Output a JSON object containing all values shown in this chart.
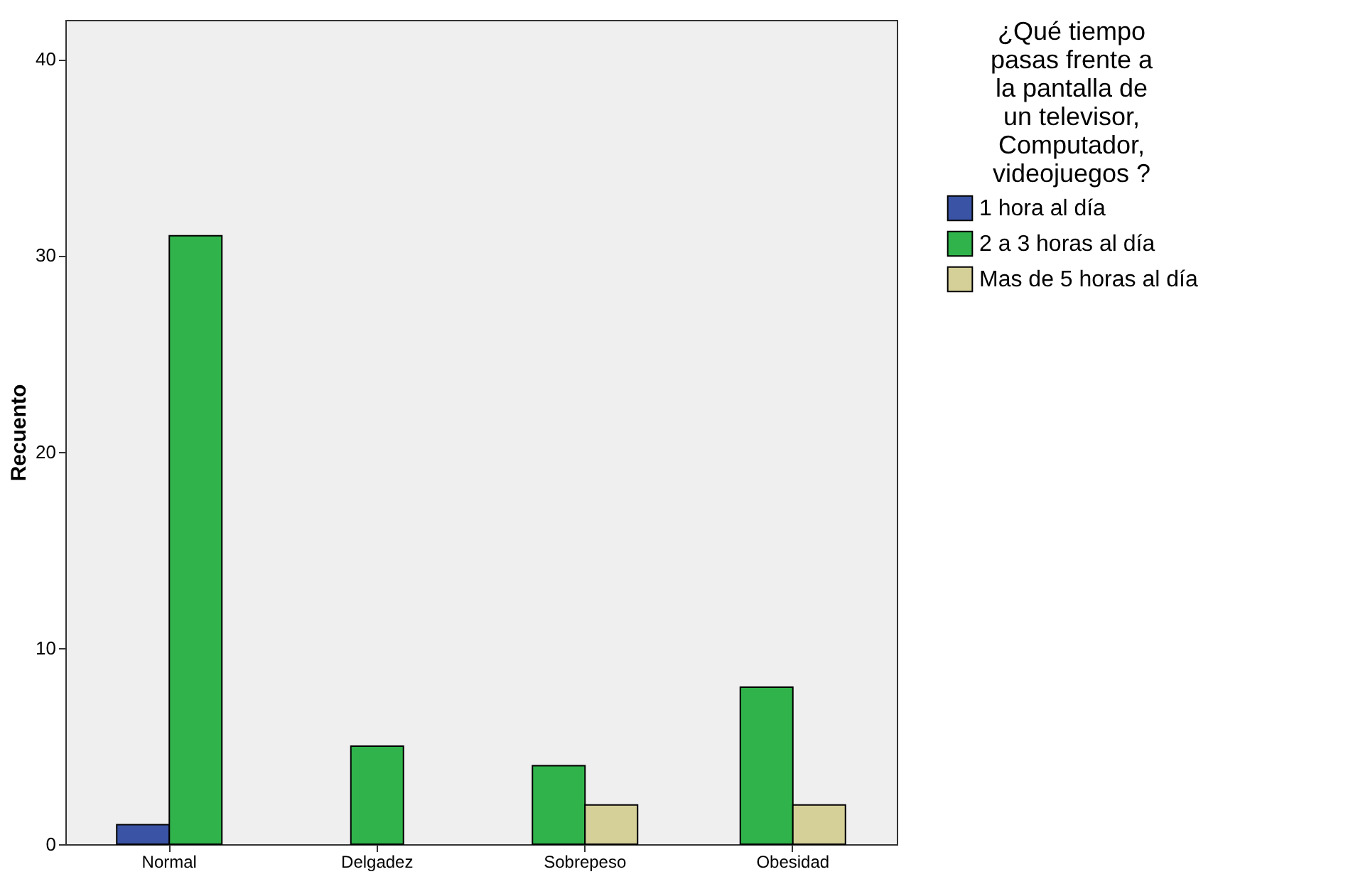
{
  "chart_data": {
    "type": "bar",
    "ylabel": "Recuento",
    "legend_title": "¿Qué tiempo pasas frente a la pantalla de un televisor, Computador, videojuegos ?",
    "categories": [
      "Normal",
      "Delgadez",
      "Sobrepeso",
      "Obesidad"
    ],
    "series": [
      {
        "name": "1 hora al día",
        "color": "#3a53a4",
        "values": [
          1,
          null,
          null,
          null
        ]
      },
      {
        "name": "2 a 3 horas al día",
        "color": "#2fb34a",
        "values": [
          31,
          5,
          4,
          8
        ]
      },
      {
        "name": "Mas de 5 horas al día",
        "color": "#d5cf98",
        "values": [
          null,
          null,
          2,
          2
        ]
      }
    ],
    "ylim": [
      0,
      42
    ],
    "yticks": [
      0,
      10,
      20,
      30,
      40
    ],
    "grid": false,
    "legend": "right"
  }
}
